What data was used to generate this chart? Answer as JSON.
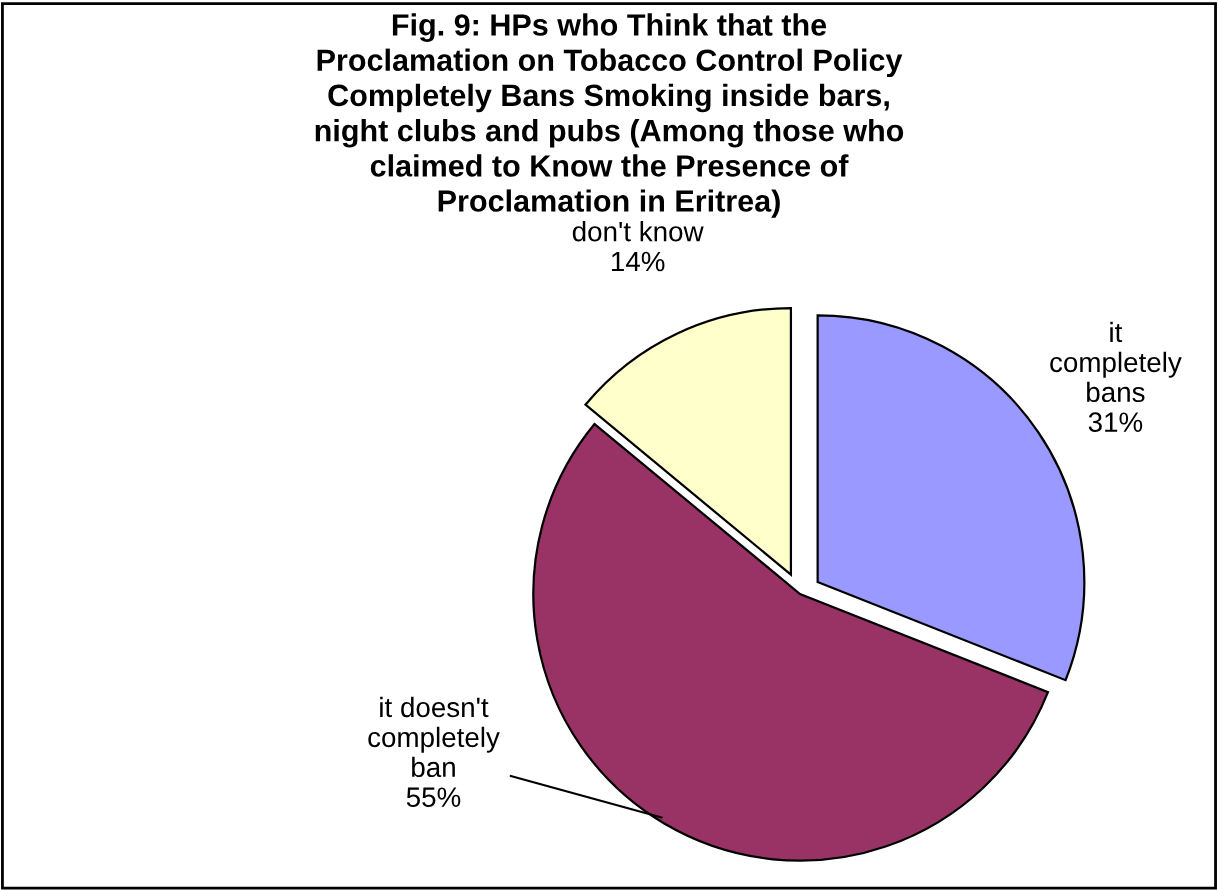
{
  "chart_data": {
    "type": "pie",
    "title": "Fig. 9: HPs who Think that the\nProclamation on Tobacco Control Policy\nCompletely Bans Smoking inside bars,\nnight clubs and pubs (Among those who\nclaimed to Know the Presence of\nProclamation in Eritrea)",
    "categories": [
      "it\ncompletely\nbans",
      "it doesn't\ncompletely\nban",
      "don't know"
    ],
    "values": [
      31,
      55,
      14
    ],
    "value_labels": [
      "31%",
      "55%",
      "14%"
    ],
    "colors": [
      "#9999ff",
      "#993366",
      "#ffffcc"
    ],
    "legend": false
  }
}
